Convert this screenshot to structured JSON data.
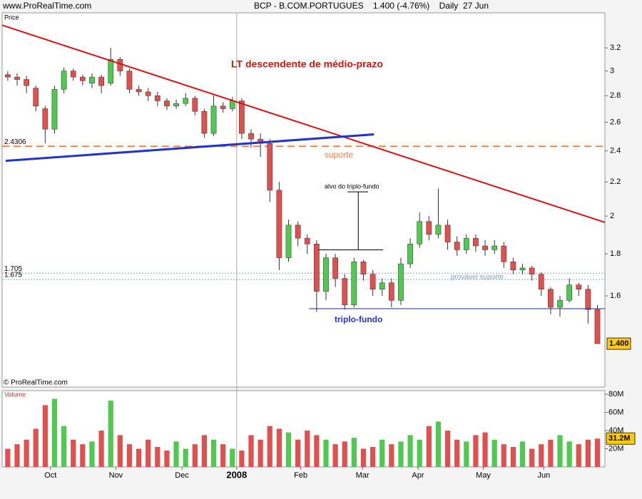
{
  "header": {
    "site": "www.ProRealTime.com",
    "copyright": "© ProRealTime.com"
  },
  "chart_data": [
    {
      "type": "candlestick",
      "title": "BCP - B.COM.PORTUGUES    1.400 (-4.76%)    Daily  27 Jun",
      "y_label": "Price",
      "log_scale": true,
      "xlim": [
        -0.6,
        63.8
      ],
      "xticks": [
        {
          "value": 4.56,
          "label": "Oct"
        },
        {
          "value": 11.55,
          "label": "Nov"
        },
        {
          "value": 18.61,
          "label": "Dec"
        },
        {
          "value": 24.46,
          "label": "2008"
        },
        {
          "value": 31.3,
          "label": "Feb"
        },
        {
          "value": 37.9,
          "label": "Mar"
        },
        {
          "value": 43.83,
          "label": "Apr"
        },
        {
          "value": 50.81,
          "label": "May"
        },
        {
          "value": 57.27,
          "label": "Jun"
        }
      ],
      "ylim": [
        1.24,
        3.53
      ],
      "yticks": [
        1.6,
        1.8,
        2,
        2.2,
        2.4,
        2.6,
        2.8,
        3,
        3.2
      ],
      "up_color": "#4fc94f",
      "down_color": "#e0504f",
      "open": [
        2.97,
        2.95,
        2.93,
        2.86,
        2.7,
        2.55,
        2.85,
        3.0,
        2.95,
        2.9,
        2.95,
        2.9,
        3.1,
        3.0,
        2.85,
        2.83,
        2.8,
        2.76,
        2.72,
        2.74,
        2.78,
        2.68,
        2.52,
        2.72,
        2.7,
        2.76,
        2.52,
        2.48,
        2.45,
        2.15,
        1.78,
        1.95,
        1.88,
        1.85,
        1.62,
        1.78,
        1.68,
        1.56,
        1.76,
        1.7,
        1.63,
        1.66,
        1.58,
        1.75,
        1.85,
        1.97,
        1.9,
        1.95,
        1.86,
        1.82,
        1.88,
        1.84,
        1.82,
        1.84,
        1.76,
        1.72,
        1.73,
        1.7,
        1.63,
        1.55,
        1.58,
        1.65,
        1.63,
        1.54
      ],
      "high": [
        3.0,
        2.98,
        2.96,
        2.88,
        2.72,
        2.88,
        3.03,
        3.02,
        2.97,
        2.98,
        2.97,
        3.2,
        3.12,
        3.02,
        2.88,
        2.86,
        2.83,
        2.78,
        2.77,
        2.82,
        2.8,
        2.7,
        2.8,
        2.75,
        2.79,
        2.78,
        2.55,
        2.52,
        2.48,
        2.2,
        1.98,
        1.97,
        1.9,
        1.87,
        1.8,
        1.8,
        1.7,
        1.78,
        1.77,
        1.72,
        1.68,
        1.68,
        1.78,
        1.88,
        2.02,
        2.0,
        2.16,
        1.98,
        1.89,
        1.9,
        1.9,
        1.87,
        1.87,
        1.86,
        1.78,
        1.75,
        1.74,
        1.71,
        1.64,
        1.6,
        1.68,
        1.66,
        1.65,
        1.56
      ],
      "low": [
        2.92,
        2.88,
        2.82,
        2.68,
        2.45,
        2.52,
        2.82,
        2.92,
        2.88,
        2.86,
        2.82,
        2.88,
        2.96,
        2.82,
        2.8,
        2.76,
        2.72,
        2.69,
        2.7,
        2.72,
        2.65,
        2.49,
        2.5,
        2.67,
        2.68,
        2.48,
        2.42,
        2.36,
        2.08,
        1.72,
        1.76,
        1.84,
        1.8,
        1.53,
        1.58,
        1.64,
        1.54,
        1.55,
        1.67,
        1.6,
        1.6,
        1.55,
        1.56,
        1.73,
        1.83,
        1.87,
        1.88,
        1.82,
        1.79,
        1.8,
        1.81,
        1.79,
        1.8,
        1.73,
        1.7,
        1.7,
        1.67,
        1.6,
        1.52,
        1.51,
        1.57,
        1.6,
        1.48,
        1.4
      ],
      "close": [
        2.95,
        2.93,
        2.88,
        2.72,
        2.55,
        2.85,
        3.0,
        2.95,
        2.92,
        2.95,
        2.88,
        3.1,
        3.0,
        2.85,
        2.83,
        2.8,
        2.76,
        2.72,
        2.74,
        2.78,
        2.68,
        2.52,
        2.72,
        2.7,
        2.76,
        2.52,
        2.48,
        2.45,
        2.15,
        1.78,
        1.95,
        1.88,
        1.85,
        1.62,
        1.78,
        1.68,
        1.56,
        1.76,
        1.7,
        1.63,
        1.66,
        1.58,
        1.75,
        1.85,
        1.97,
        1.9,
        1.95,
        1.86,
        1.82,
        1.88,
        1.84,
        1.82,
        1.84,
        1.76,
        1.72,
        1.73,
        1.7,
        1.63,
        1.55,
        1.58,
        1.65,
        1.63,
        1.54,
        1.4
      ],
      "last_price": {
        "value": 1.4,
        "label": "1.400"
      },
      "levels": [
        {
          "value": 2.4306,
          "label": "2.4306",
          "color": "#ff8040",
          "style": "dashed"
        },
        {
          "value": 1.705,
          "label": "1.705",
          "color": "#7fa3d8",
          "style": "dotted"
        },
        {
          "value": 1.675,
          "label": "1.675",
          "color": "#7fa3d8",
          "style": "dotted"
        }
      ],
      "lines": [
        {
          "from": [
            -0.6,
            3.41
          ],
          "to": [
            63.8,
            1.965
          ],
          "color": "#dd1111",
          "width": 2
        },
        {
          "from": [
            -0.22,
            2.334
          ],
          "to": [
            39.12,
            2.513
          ],
          "color": "#2233cc",
          "width": 3
        },
        {
          "from": [
            32.2,
            1.544
          ],
          "to": [
            63.8,
            1.544
          ],
          "color": "#222288",
          "width": 1
        },
        {
          "from": [
            33.2,
            1.82
          ],
          "to": [
            40.1,
            1.82
          ],
          "color": "#000000",
          "width": 1
        },
        {
          "from": [
            37.45,
            1.82
          ],
          "to": [
            37.45,
            2.14
          ],
          "color": "#000000",
          "width": 1
        },
        {
          "from": [
            36.3,
            2.14
          ],
          "to": [
            38.5,
            2.14
          ],
          "color": "#000000",
          "width": 1
        }
      ],
      "annotations": [
        "LT descendente de médio-prazo",
        "suporte",
        "alvo do triplo-fundo",
        "triplo-fundo",
        "provável suporte"
      ]
    },
    {
      "type": "bar",
      "y_label": "Volume",
      "ylim": [
        0,
        84
      ],
      "yticks": [
        {
          "value": 20,
          "label": "20M"
        },
        {
          "value": 40,
          "label": "40M"
        },
        {
          "value": 60,
          "label": "60M"
        },
        {
          "value": 80,
          "label": "80M"
        }
      ],
      "values": [
        20,
        25,
        30,
        42,
        68,
        75,
        45,
        30,
        25,
        28,
        40,
        73,
        35,
        25,
        20,
        30,
        22,
        18,
        28,
        20,
        25,
        35,
        30,
        25,
        20,
        18,
        35,
        30,
        45,
        42,
        38,
        30,
        40,
        35,
        30,
        25,
        28,
        32,
        20,
        22,
        30,
        25,
        28,
        35,
        30,
        45,
        50,
        40,
        30,
        28,
        35,
        38,
        30,
        25,
        22,
        28,
        20,
        25,
        30,
        35,
        28,
        25,
        30,
        31.2
      ],
      "last_value": {
        "value": 31.2,
        "label": "31.2M"
      }
    }
  ]
}
